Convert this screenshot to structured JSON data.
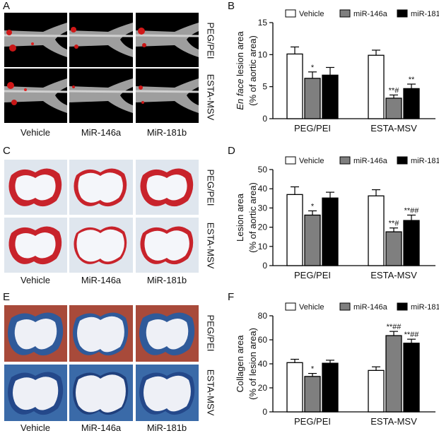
{
  "panel_labels": {
    "a": "A",
    "b": "B",
    "c": "C",
    "d": "D",
    "e": "E",
    "f": "F"
  },
  "image_grid": {
    "columns": [
      "Vehicle",
      "MiR-146a",
      "MiR-181b"
    ],
    "rows": [
      "PEG/PEI",
      "ESTA-MSV"
    ]
  },
  "legend": {
    "vehicle": "Vehicle",
    "mir146a": "miR-146a",
    "mir181b": "miR-181b"
  },
  "colors": {
    "vehicle": "#ffffff",
    "mir146a": "#7f7f7f",
    "mir181b": "#000000",
    "axis": "#000000"
  },
  "chart_data": [
    {
      "id": "B",
      "type": "bar",
      "ylabel_italic": "En face",
      "ylabel_rest": " lesion area",
      "ylabel_line2": "(% of aortic area)",
      "ylim": [
        0,
        15
      ],
      "yticks": [
        "0",
        "5",
        "10",
        "15"
      ],
      "categories": [
        "PEG/PEI",
        "ESTA-MSV"
      ],
      "series": [
        {
          "name": "Vehicle",
          "values": [
            10.1,
            9.9
          ],
          "errors": [
            1.1,
            0.8
          ],
          "annotations": [
            "",
            ""
          ]
        },
        {
          "name": "miR-146a",
          "values": [
            6.3,
            3.2
          ],
          "errors": [
            1.0,
            0.5
          ],
          "annotations": [
            "*",
            "**#"
          ]
        },
        {
          "name": "miR-181b",
          "values": [
            6.8,
            4.7
          ],
          "errors": [
            1.2,
            0.7
          ],
          "annotations": [
            "",
            "**"
          ]
        }
      ]
    },
    {
      "id": "D",
      "type": "bar",
      "ylabel_italic": "",
      "ylabel_rest": "Lesion area",
      "ylabel_line2": "(% of aortic area)",
      "ylim": [
        0,
        50
      ],
      "yticks": [
        "0",
        "10",
        "20",
        "30",
        "40",
        "50"
      ],
      "categories": [
        "PEG/PEI",
        "ESTA-MSV"
      ],
      "series": [
        {
          "name": "Vehicle",
          "values": [
            37,
            36.3
          ],
          "errors": [
            4,
            3.2
          ],
          "annotations": [
            "",
            ""
          ]
        },
        {
          "name": "miR-146a",
          "values": [
            26.3,
            17.6
          ],
          "errors": [
            2.2,
            2
          ],
          "annotations": [
            "*",
            "**#"
          ]
        },
        {
          "name": "miR-181b",
          "values": [
            35.2,
            23.5
          ],
          "errors": [
            3,
            2.8
          ],
          "annotations": [
            "",
            "**##"
          ]
        }
      ]
    },
    {
      "id": "F",
      "type": "bar",
      "ylabel_italic": "",
      "ylabel_rest": "Collagen area",
      "ylabel_line2": "(% of lesion area)",
      "ylim": [
        0,
        80
      ],
      "yticks": [
        "0",
        "20",
        "40",
        "60",
        "80"
      ],
      "categories": [
        "PEG/PEI",
        "ESTA-MSV"
      ],
      "series": [
        {
          "name": "Vehicle",
          "values": [
            41,
            34.5
          ],
          "errors": [
            2.8,
            3
          ],
          "annotations": [
            "",
            ""
          ]
        },
        {
          "name": "miR-146a",
          "values": [
            29.5,
            63.5
          ],
          "errors": [
            2.5,
            3.5
          ],
          "annotations": [
            "*",
            "**##"
          ]
        },
        {
          "name": "miR-181b",
          "values": [
            40.5,
            57.2
          ],
          "errors": [
            2.5,
            3.3
          ],
          "annotations": [
            "",
            "**##"
          ]
        }
      ]
    }
  ]
}
